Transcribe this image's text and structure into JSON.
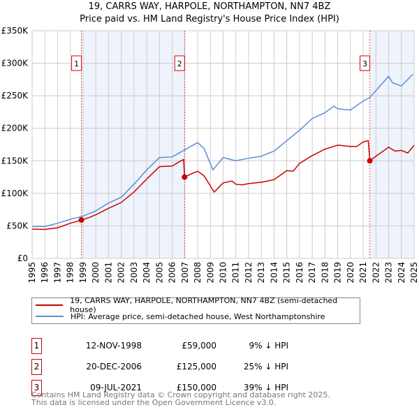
{
  "chart_data": {
    "type": "line",
    "title": "19, CARRS WAY, HARPOLE, NORTHAMPTON, NN7 4BZ",
    "subtitle": "Price paid vs. HM Land Registry's House Price Index (HPI)",
    "xlim": [
      1995,
      2025
    ],
    "ylim": [
      0,
      350000
    ],
    "yticks": [
      0,
      50000,
      100000,
      150000,
      200000,
      250000,
      300000,
      350000
    ],
    "ytick_labels": [
      "£0",
      "£50K",
      "£100K",
      "£150K",
      "£200K",
      "£250K",
      "£300K",
      "£350K"
    ],
    "xticks": [
      1995,
      1996,
      1997,
      1998,
      1999,
      2000,
      2001,
      2002,
      2003,
      2004,
      2005,
      2006,
      2007,
      2008,
      2009,
      2010,
      2011,
      2012,
      2013,
      2014,
      2015,
      2016,
      2017,
      2018,
      2019,
      2020,
      2021,
      2022,
      2023,
      2024,
      2025
    ],
    "grid": true,
    "series": [
      {
        "name": "19, CARRS WAY, HARPOLE, NORTHAMPTON, NN7 4BZ (semi-detached house)",
        "color": "#cc0000",
        "x": [
          1995,
          1996,
          1997,
          1998,
          1998.87,
          1999.5,
          2000,
          2001,
          2002,
          2003,
          2004,
          2005,
          2006,
          2006.6,
          2006.9,
          2006.97,
          2007.5,
          2008,
          2008.5,
          2009.3,
          2010,
          2010.7,
          2011,
          2011.5,
          2012,
          2013,
          2014,
          2015,
          2015.5,
          2016,
          2017,
          2018,
          2019,
          2020,
          2020.5,
          2021,
          2021.4,
          2021.52,
          2022,
          2023,
          2023.5,
          2024,
          2024.5,
          2025
        ],
        "y": [
          45000,
          44500,
          47000,
          54000,
          59000,
          63000,
          67000,
          77000,
          86000,
          102000,
          122000,
          141000,
          142000,
          149000,
          152000,
          125000,
          130000,
          134000,
          127000,
          102000,
          116000,
          119000,
          114000,
          113000,
          115000,
          117000,
          121000,
          135000,
          134000,
          146000,
          158000,
          168000,
          174000,
          172000,
          172000,
          179000,
          181000,
          150000,
          157000,
          171000,
          165000,
          166000,
          162000,
          174000
        ]
      },
      {
        "name": "HPI: Average price, semi-detached house, West Northamptonshire",
        "color": "#5b8fd4",
        "x": [
          1995,
          1996,
          1997,
          1998,
          1999,
          2000,
          2001,
          2002,
          2003,
          2004,
          2005,
          2006,
          2007,
          2008,
          2008.5,
          2009.2,
          2010,
          2011,
          2012,
          2013,
          2014,
          2015,
          2016,
          2017,
          2018,
          2018.7,
          2019,
          2020,
          2021,
          2021.5,
          2022,
          2023,
          2023.3,
          2024,
          2024.9
        ],
        "y": [
          49000,
          49000,
          54000,
          60000,
          65000,
          73000,
          85000,
          94000,
          114000,
          136000,
          155000,
          156000,
          167000,
          178000,
          169000,
          136000,
          155000,
          150000,
          154000,
          157000,
          165000,
          181000,
          197000,
          215000,
          224000,
          234000,
          230000,
          228000,
          242000,
          247000,
          258000,
          280000,
          270000,
          265000,
          283000
        ]
      }
    ],
    "shaded": [
      [
        1998.87,
        2006.97
      ],
      [
        2021.52,
        2025
      ]
    ],
    "sales": [
      {
        "n": "1",
        "x": 1998.87,
        "y": 59000,
        "date": "12-NOV-1998",
        "price": "£59,000",
        "diff": "9% ↓ HPI"
      },
      {
        "n": "2",
        "x": 2006.97,
        "y": 125000,
        "date": "20-DEC-2006",
        "price": "£125,000",
        "diff": "25% ↓ HPI"
      },
      {
        "n": "3",
        "x": 2021.52,
        "y": 150000,
        "date": "09-JUL-2021",
        "price": "£150,000",
        "diff": "39% ↓ HPI"
      }
    ]
  },
  "footer": [
    "Contains HM Land Registry data © Crown copyright and database right 2025.",
    "This data is licensed under the Open Government Licence v3.0."
  ]
}
